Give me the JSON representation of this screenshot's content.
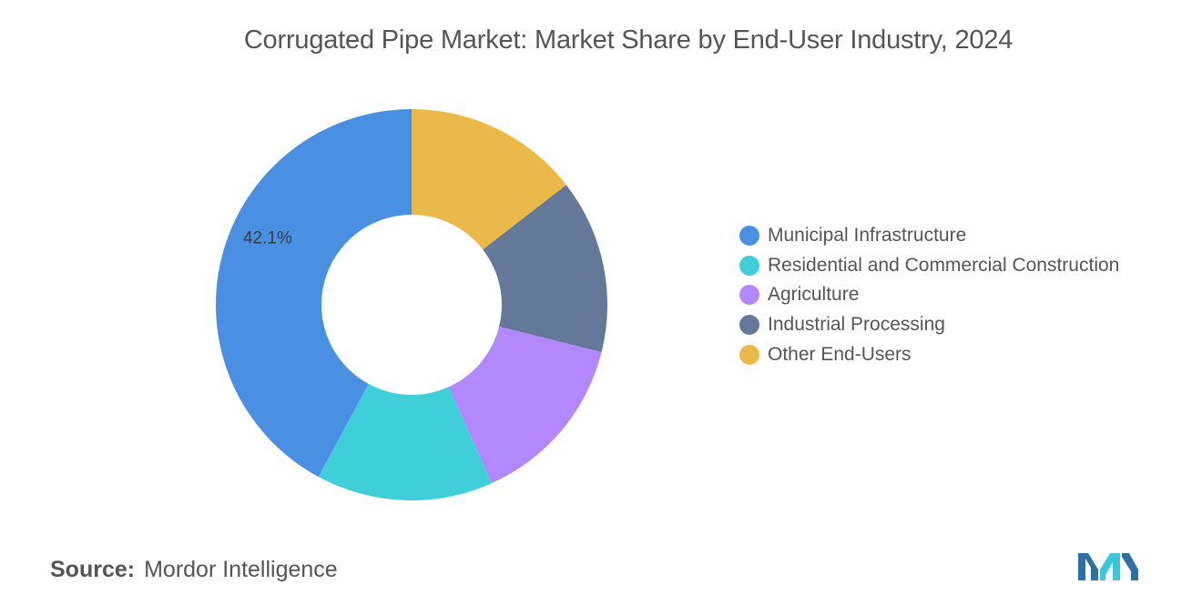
{
  "chart_data": {
    "type": "pie",
    "donut": true,
    "title": "Corrugated Pipe Market: Market Share by End-User Industry, 2024",
    "series": [
      {
        "name": "Municipal Infrastructure",
        "value": 42.1,
        "color": "#4A90E2",
        "data_label": "42.1%"
      },
      {
        "name": "Residential and Commercial Construction",
        "value": 14.6,
        "color": "#3ECFD9"
      },
      {
        "name": "Agriculture",
        "value": 14.4,
        "color": "#B388FF"
      },
      {
        "name": "Industrial Processing",
        "value": 14.4,
        "color": "#647899"
      },
      {
        "name": "Other End-Users",
        "value": 14.5,
        "color": "#EBB84A"
      }
    ],
    "legend_position": "right"
  },
  "legend_order": [
    {
      "label": "Municipal Infrastructure",
      "color": "#4A90E2"
    },
    {
      "label": "Residential and Commercial Construction",
      "color": "#3ECFD9"
    },
    {
      "label": "Agriculture",
      "color": "#B388FF"
    },
    {
      "label": "Industrial Processing",
      "color": "#647899"
    },
    {
      "label": "Other End-Users",
      "color": "#EBB84A"
    }
  ],
  "footer": {
    "source_label": "Source:",
    "source_text": "Mordor Intelligence",
    "logo_icon": "mordor-intelligence-logo"
  }
}
